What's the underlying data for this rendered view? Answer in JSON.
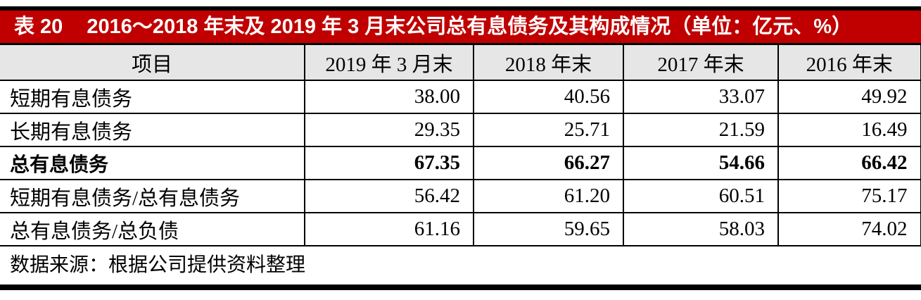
{
  "colors": {
    "title_background": "#c00000",
    "title_text": "#ffffff",
    "header_background": "#e6e6e6",
    "border": "#000000"
  },
  "title": {
    "prefix": "表 20",
    "text": "2016～2018 年末及 2019 年 3 月末公司总有息债务及其构成情况（单位：亿元、%）"
  },
  "table": {
    "columns": [
      "项目",
      "2019 年 3 月末",
      "2018 年末",
      "2017 年末",
      "2016 年末"
    ],
    "rows": [
      {
        "label": "短期有息债务",
        "bold": false,
        "values": [
          "38.00",
          "40.56",
          "33.07",
          "49.92"
        ]
      },
      {
        "label": "长期有息债务",
        "bold": false,
        "values": [
          "29.35",
          "25.71",
          "21.59",
          "16.49"
        ]
      },
      {
        "label": "总有息债务",
        "bold": true,
        "values": [
          "67.35",
          "66.27",
          "54.66",
          "66.42"
        ]
      },
      {
        "label": "短期有息债务/总有息债务",
        "bold": false,
        "values": [
          "56.42",
          "61.20",
          "60.51",
          "75.17"
        ]
      },
      {
        "label": "总有息债务/总负债",
        "bold": false,
        "values": [
          "61.16",
          "59.65",
          "58.03",
          "74.02"
        ]
      }
    ]
  },
  "footer": {
    "source": "数据来源：根据公司提供资料整理"
  }
}
